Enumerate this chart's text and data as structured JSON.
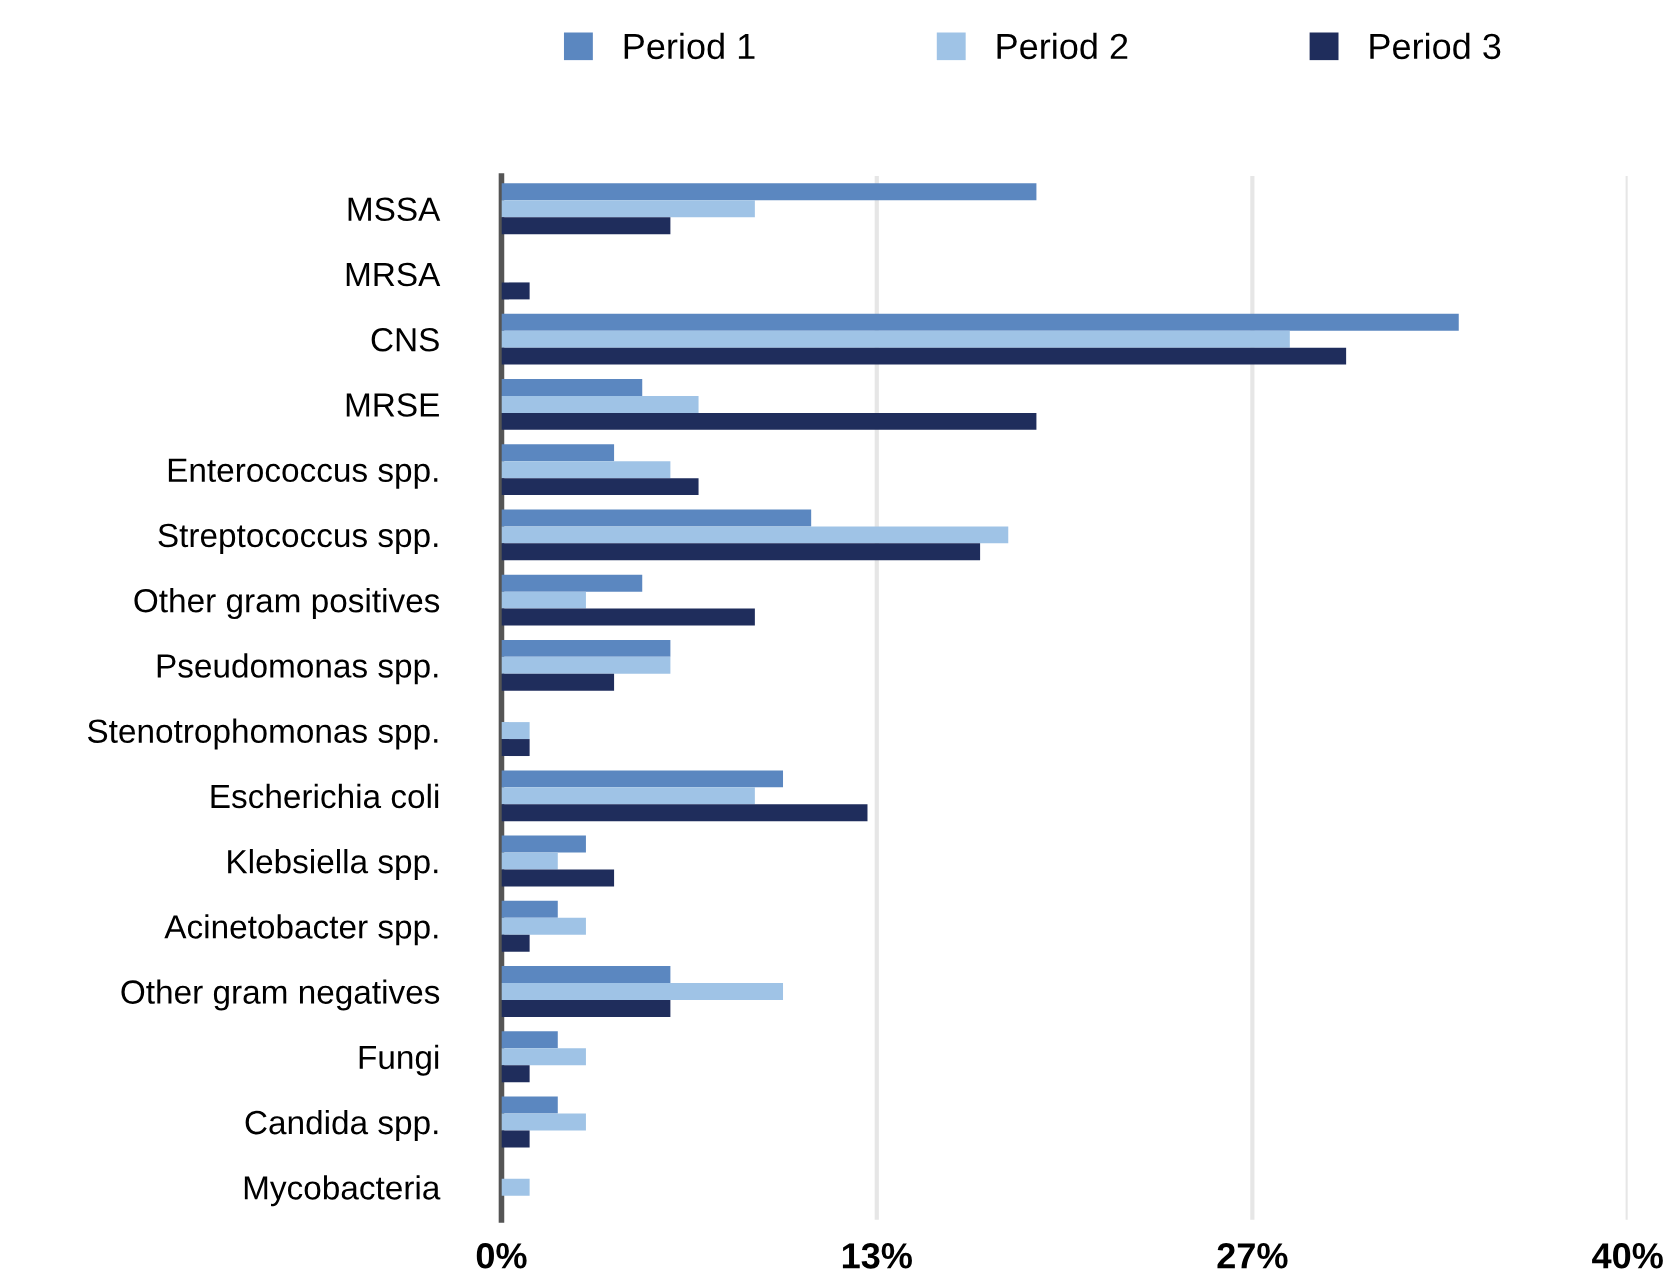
{
  "chart_data": {
    "type": "bar",
    "orientation": "horizontal",
    "categories": [
      "MSSA",
      "MRSA",
      "CNS",
      "MRSE",
      "Enterococcus spp.",
      "Streptococcus spp.",
      "Other gram positives",
      "Pseudomonas spp.",
      "Stenotrophomonas spp.",
      "Escherichia coli",
      "Klebsiella spp.",
      "Acinetobacter spp.",
      "Other gram negatives",
      "Fungi",
      "Candida spp.",
      "Mycobacteria"
    ],
    "series": [
      {
        "name": "Period 1",
        "color": "#5b87c0",
        "values": [
          19,
          0,
          34,
          5,
          4,
          11,
          5,
          6,
          0,
          10,
          3,
          2,
          6,
          2,
          2,
          0
        ]
      },
      {
        "name": "Period 2",
        "color": "#9fc3e6",
        "values": [
          9,
          0,
          28,
          7,
          6,
          18,
          3,
          6,
          1,
          9,
          2,
          3,
          10,
          3,
          3,
          1
        ]
      },
      {
        "name": "Period 3",
        "color": "#1f2d5c",
        "values": [
          6,
          1,
          30,
          19,
          7,
          17,
          9,
          4,
          1,
          13,
          4,
          1,
          6,
          1,
          1,
          0
        ]
      }
    ],
    "xlim": [
      0,
      40
    ],
    "xticks": [
      {
        "value": 0,
        "label": "0%"
      },
      {
        "value": 13.33,
        "label": "13%"
      },
      {
        "value": 26.67,
        "label": "27%"
      },
      {
        "value": 40,
        "label": "40%"
      }
    ],
    "grid": "x",
    "legend": "top"
  }
}
